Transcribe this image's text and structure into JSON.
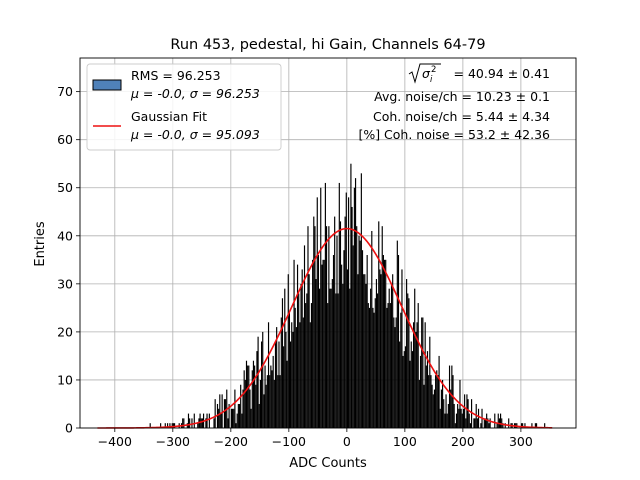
{
  "chart_data": {
    "type": "bar",
    "title": "Run 453, pedestal, hi Gain, Channels 64-79",
    "xlabel": "ADC Counts",
    "ylabel": "Entries",
    "xlim": [
      -460,
      395
    ],
    "ylim": [
      0,
      77
    ],
    "xticks": [
      -400,
      -300,
      -200,
      -100,
      0,
      100,
      200,
      300
    ],
    "yticks": [
      0,
      10,
      20,
      30,
      40,
      50,
      60,
      70
    ],
    "grid": true,
    "legend_placement": "top-left",
    "histogram": {
      "label_line1": "RMS = 96.253",
      "label_line2": "μ = -0.0, σ = 96.253",
      "color": "#000000",
      "legend_color": "#4f81b9",
      "range": [
        -430,
        355
      ],
      "bin_width": 2,
      "rms": 96.253,
      "mean": 0.0,
      "sigma": 96.253,
      "peak_entries": 41.5,
      "max_entries_observed": 55
    },
    "fit": {
      "label_line1": "Gaussian Fit",
      "label_line2": "μ = -0.0, σ = 95.093",
      "color": "#ee1111",
      "mu": 0.0,
      "sigma": 95.093,
      "amplitude": 41.5,
      "range": [
        -430,
        355
      ]
    },
    "annotations": [
      {
        "kind": "sqrt_sigma",
        "value": "= 40.94 ± 0.41"
      },
      {
        "kind": "text",
        "text": "Avg. noise/ch = 10.23 ± 0.1"
      },
      {
        "kind": "text",
        "text": "Coh. noise/ch = 5.44 ± 4.34"
      },
      {
        "kind": "text",
        "text": "[%] Coh. noise = 53.2 ± 42.36"
      }
    ]
  }
}
